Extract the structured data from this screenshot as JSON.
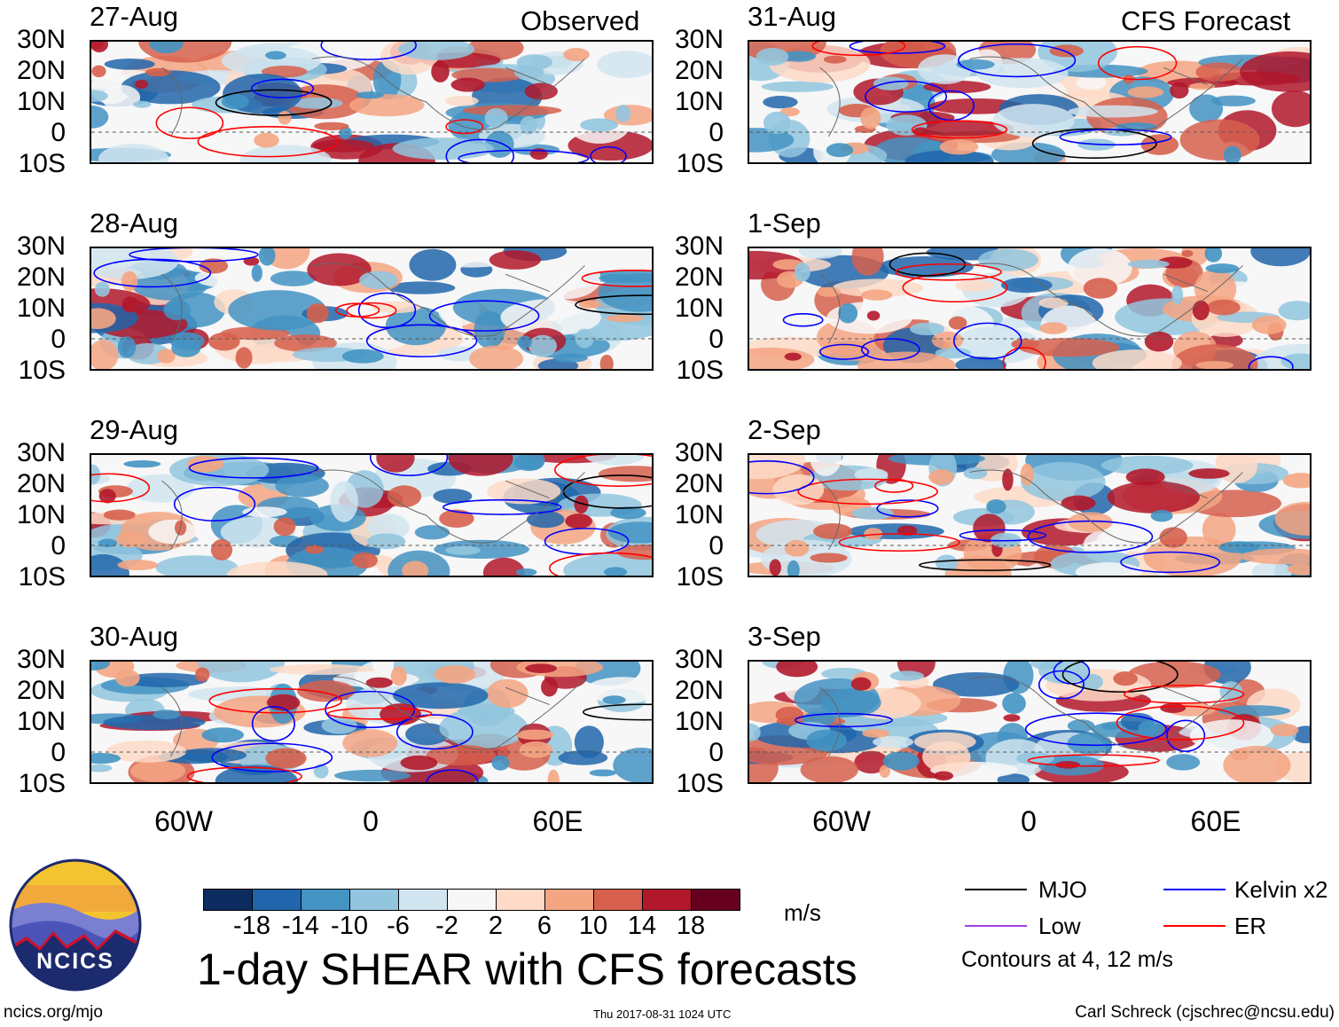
{
  "headers": {
    "observed": "Observed",
    "forecast": "CFS Forecast"
  },
  "observed_panels": [
    "27-Aug",
    "28-Aug",
    "29-Aug",
    "30-Aug"
  ],
  "forecast_panels": [
    "31-Aug",
    "1-Sep",
    "2-Sep",
    "3-Sep"
  ],
  "lat_labels": [
    "30N",
    "20N",
    "10N",
    "0",
    "10S"
  ],
  "lon_labels": [
    "60W",
    "0",
    "60E"
  ],
  "colorbar": {
    "levels": [
      "-18",
      "-14",
      "-10",
      "-6",
      "-2",
      "2",
      "6",
      "10",
      "14",
      "18"
    ],
    "colors": [
      "#0c2c5f",
      "#2166ac",
      "#4393c3",
      "#92c5de",
      "#d1e5f0",
      "#f7f7f7",
      "#fddbc7",
      "#f4a582",
      "#d6604d",
      "#b2182b",
      "#67001f"
    ],
    "units": "m/s"
  },
  "title": "1-day SHEAR with CFS forecasts",
  "legend": {
    "items": [
      {
        "label": "MJO",
        "color": "#000000"
      },
      {
        "label": "Kelvin x2",
        "color": "#0000ff"
      },
      {
        "label": "Low",
        "color": "#a040e0"
      },
      {
        "label": "ER",
        "color": "#ff0000"
      }
    ],
    "note": "Contours at 4, 12 m/s"
  },
  "logo_text": "NCICS",
  "footer": {
    "url": "ncics.org/mjo",
    "timestamp": "Thu 2017-08-31 1024 UTC",
    "credit": "Carl Schreck (cjschrec@ncsu.edu)"
  }
}
